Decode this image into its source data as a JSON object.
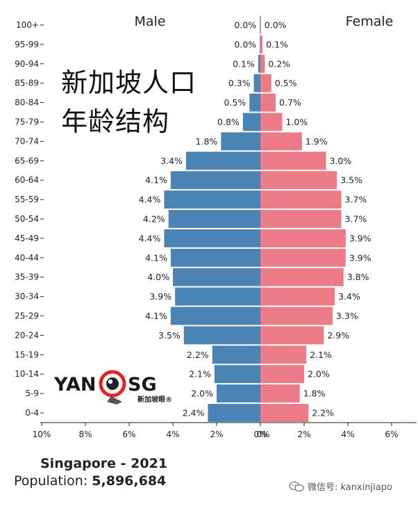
{
  "chart_data": {
    "type": "bar",
    "subtype": "population-pyramid",
    "left_label": "Male",
    "right_label": "Female",
    "categories": [
      "0-4",
      "5-9",
      "10-14",
      "15-19",
      "20-24",
      "25-29",
      "30-34",
      "35-39",
      "40-44",
      "45-49",
      "50-54",
      "55-59",
      "60-64",
      "65-69",
      "70-74",
      "75-79",
      "80-84",
      "85-89",
      "90-94",
      "95-99",
      "100+"
    ],
    "series": [
      {
        "name": "Male",
        "color": "#4a84b5",
        "values": [
          2.4,
          2.0,
          2.1,
          2.2,
          3.5,
          4.1,
          3.9,
          4.0,
          4.1,
          4.4,
          4.2,
          4.4,
          4.1,
          3.4,
          1.8,
          0.8,
          0.5,
          0.3,
          0.1,
          0.0,
          0.0
        ],
        "value_labels": [
          "2.4%",
          "2.0%",
          "2.1%",
          "2.2%",
          "3.5%",
          "4.1%",
          "3.9%",
          "4.0%",
          "4.1%",
          "4.4%",
          "4.2%",
          "4.4%",
          "4.1%",
          "3.4%",
          "1.8%",
          "0.8%",
          "0.5%",
          "0.3%",
          "0.1%",
          "0.0%",
          "0.0%"
        ]
      },
      {
        "name": "Female",
        "color": "#ec7a87",
        "values": [
          2.2,
          1.8,
          2.0,
          2.1,
          2.9,
          3.3,
          3.4,
          3.8,
          3.9,
          3.9,
          3.7,
          3.7,
          3.5,
          3.0,
          1.9,
          1.0,
          0.7,
          0.5,
          0.2,
          0.1,
          0.0
        ],
        "value_labels": [
          "2.2%",
          "1.8%",
          "2.0%",
          "2.1%",
          "2.9%",
          "3.3%",
          "3.4%",
          "3.8%",
          "3.9%",
          "3.9%",
          "3.7%",
          "3.7%",
          "3.5%",
          "3.0%",
          "1.9%",
          "1.0%",
          "0.7%",
          "0.5%",
          "0.2%",
          "0.1%",
          "0.0%"
        ]
      }
    ],
    "x_ticks_left": [
      "10%",
      "8%",
      "6%",
      "4%",
      "2%",
      "0%"
    ],
    "x_ticks_right": [
      "0%",
      "2%",
      "4%",
      "6%"
    ],
    "xlim_left": [
      10,
      0
    ],
    "xlim_right": [
      0,
      6
    ],
    "overlay_title_line1": "新加坡人口",
    "overlay_title_line2": "年龄结构",
    "footer_title": "Singapore - 2021",
    "footer_population_label": "Population:",
    "footer_population_value": "5,896,684"
  },
  "logo": {
    "text_left": "YAN",
    "text_right": "SG",
    "subtitle": "新加坡眼®",
    "ring_color": "#e52420"
  },
  "watermark": {
    "text": "微信号: kanxinjiapo",
    "icon": "wechat-icon"
  }
}
